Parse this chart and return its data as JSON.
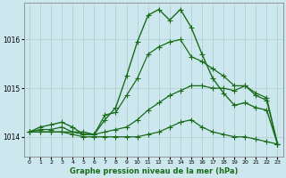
{
  "bg_color": "#cce8ee",
  "grid_color": "#aacccc",
  "line_color": "#1a6b1a",
  "title": "Graphe pression niveau de la mer (hPa)",
  "xlim": [
    -0.5,
    23.5
  ],
  "ylim": [
    1013.6,
    1016.75
  ],
  "yticks": [
    1014,
    1015,
    1016
  ],
  "xticks": [
    0,
    1,
    2,
    3,
    4,
    5,
    6,
    7,
    8,
    9,
    10,
    11,
    12,
    13,
    14,
    15,
    16,
    17,
    18,
    19,
    20,
    21,
    22,
    23
  ],
  "series": [
    {
      "x": [
        0,
        1,
        2,
        3,
        4,
        5,
        6,
        7,
        8,
        9,
        10,
        11,
        12,
        13,
        14,
        15,
        16,
        17,
        18,
        19,
        20,
        21,
        22,
        23
      ],
      "y": [
        1014.1,
        1014.2,
        1014.25,
        1014.3,
        1014.2,
        1014.05,
        1014.05,
        1014.35,
        1014.6,
        1015.25,
        1015.95,
        1016.5,
        1016.62,
        1016.4,
        1016.62,
        1016.25,
        1015.7,
        1015.2,
        1014.9,
        1014.65,
        1014.7,
        1014.6,
        1014.55,
        1013.85
      ],
      "marker": "+",
      "markersize": 4,
      "linewidth": 1.0,
      "zorder": 5
    },
    {
      "x": [
        0,
        1,
        2,
        3,
        4,
        5,
        6,
        7,
        8,
        9,
        10,
        11,
        12,
        13,
        14,
        15,
        16,
        17,
        18,
        19,
        20,
        21,
        22,
        23
      ],
      "y": [
        1014.1,
        1014.15,
        1014.15,
        1014.2,
        1014.1,
        1014.1,
        1014.05,
        1014.45,
        1014.5,
        1014.85,
        1015.2,
        1015.7,
        1015.85,
        1015.95,
        1016.0,
        1015.65,
        1015.55,
        1015.4,
        1015.25,
        1015.05,
        1015.05,
        1014.9,
        1014.8,
        1013.85
      ],
      "marker": "+",
      "markersize": 4,
      "linewidth": 0.9,
      "zorder": 4
    },
    {
      "x": [
        0,
        1,
        2,
        3,
        4,
        5,
        6,
        7,
        8,
        9,
        10,
        11,
        12,
        13,
        14,
        15,
        16,
        17,
        18,
        19,
        20,
        21,
        22,
        23
      ],
      "y": [
        1014.1,
        1014.1,
        1014.1,
        1014.1,
        1014.1,
        1014.05,
        1014.05,
        1014.1,
        1014.15,
        1014.2,
        1014.35,
        1014.55,
        1014.7,
        1014.85,
        1014.95,
        1015.05,
        1015.05,
        1015.0,
        1015.0,
        1014.95,
        1015.05,
        1014.85,
        1014.75,
        1013.85
      ],
      "marker": "+",
      "markersize": 4,
      "linewidth": 0.9,
      "zorder": 3
    },
    {
      "x": [
        0,
        1,
        2,
        3,
        4,
        5,
        6,
        7,
        8,
        9,
        10,
        11,
        12,
        13,
        14,
        15,
        16,
        17,
        18,
        19,
        20,
        21,
        22,
        23
      ],
      "y": [
        1014.1,
        1014.1,
        1014.1,
        1014.1,
        1014.05,
        1014.0,
        1014.0,
        1014.0,
        1014.0,
        1014.0,
        1014.0,
        1014.05,
        1014.1,
        1014.2,
        1014.3,
        1014.35,
        1014.2,
        1014.1,
        1014.05,
        1014.0,
        1014.0,
        1013.95,
        1013.9,
        1013.85
      ],
      "marker": "+",
      "markersize": 4,
      "linewidth": 0.9,
      "zorder": 2
    }
  ]
}
